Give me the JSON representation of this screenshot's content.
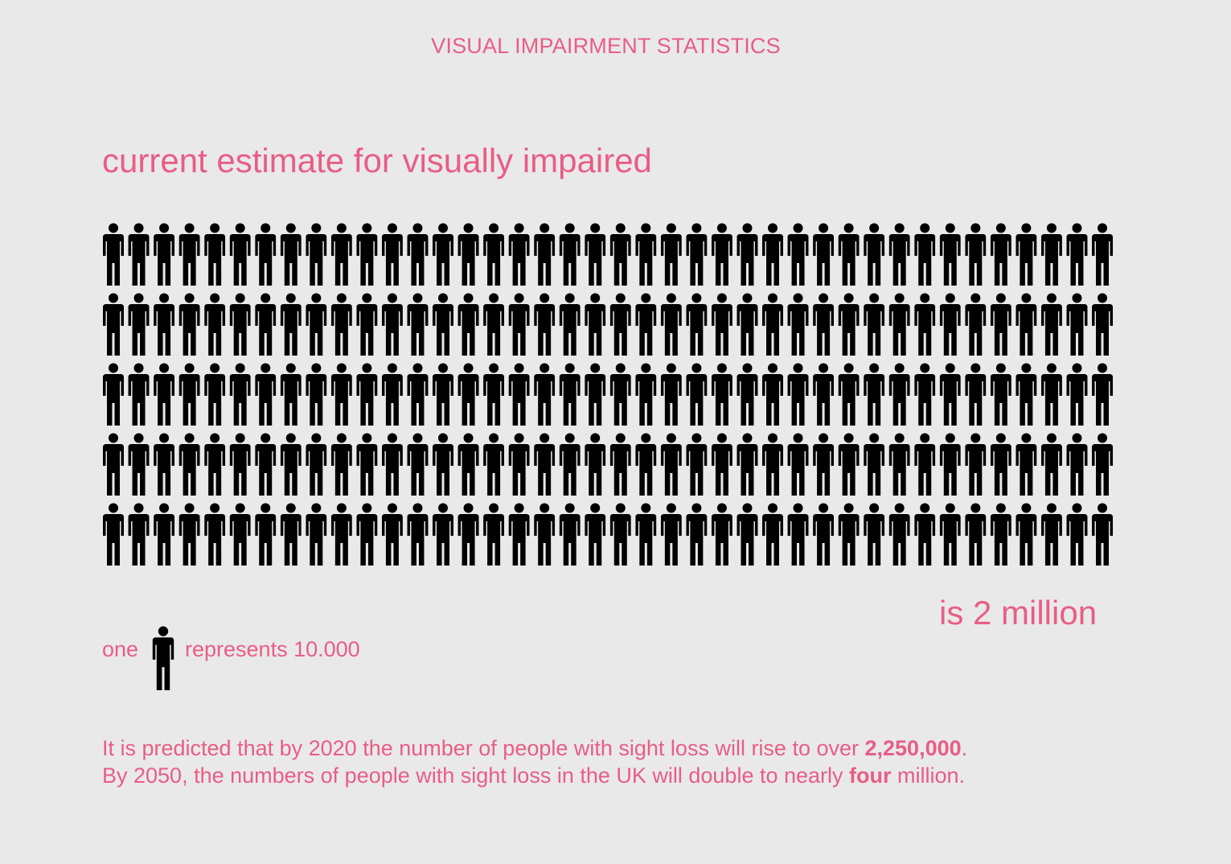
{
  "title": "VISUAL IMPAIRMENT STATISTICS",
  "heading": "current estimate for visually impaired",
  "total_label": "is 2 million",
  "legend": {
    "prefix": "one",
    "suffix": "represents 10.000",
    "icon": "person-icon"
  },
  "pictogram": {
    "rows": 5,
    "columns": 40,
    "icon": "person-icon",
    "icon_color": "#000000"
  },
  "prediction": {
    "line1_text": "It is predicted that by 2020 the number of people with sight loss will rise to over ",
    "line1_value": "2,250,000",
    "line1_end": ".",
    "line2_text": "By 2050, the numbers of people with sight loss in the UK will double to nearly ",
    "line2_value": "four",
    "line2_end": " million."
  },
  "colors": {
    "accent": "#e85d86",
    "background": "#e9e9e9",
    "icon": "#000000"
  }
}
